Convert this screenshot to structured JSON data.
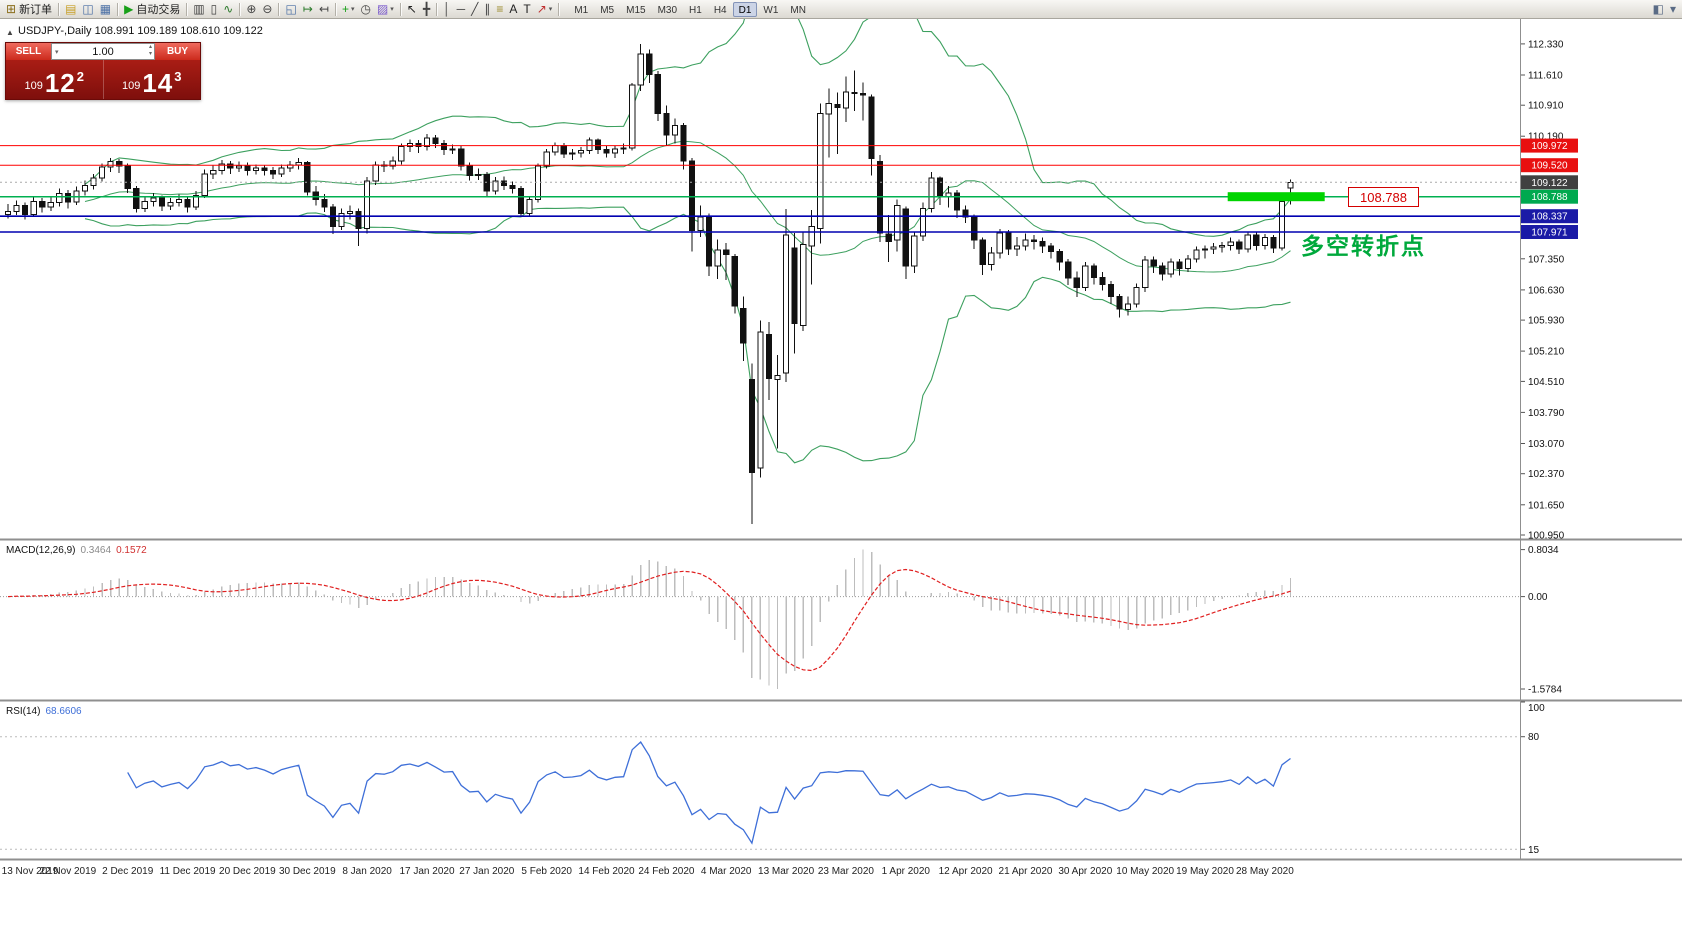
{
  "toolbar": {
    "items": [
      {
        "name": "new-order-button",
        "glyph": "⊞",
        "color": "#8a6d1a",
        "label": "新订单"
      },
      {
        "sep": true
      },
      {
        "name": "profiles-icon",
        "glyph": "▤",
        "color": "#c8a028"
      },
      {
        "name": "market-watch-icon",
        "glyph": "◫",
        "color": "#4a6fa5"
      },
      {
        "name": "data-window-icon",
        "glyph": "▦",
        "color": "#4a6fa5"
      },
      {
        "sep": true
      },
      {
        "name": "auto-trading-button",
        "glyph": "▶",
        "color": "#18a018",
        "label": "自动交易"
      },
      {
        "sep": true
      },
      {
        "name": "bar-chart-icon",
        "glyph": "▥",
        "color": "#444444"
      },
      {
        "name": "candlestick-chart-icon",
        "glyph": "▯",
        "color": "#444444"
      },
      {
        "name": "line-chart-icon",
        "glyph": "∿",
        "color": "#2a7a2a"
      },
      {
        "sep": true
      },
      {
        "name": "zoom-in-icon",
        "glyph": "⊕",
        "color": "#444444"
      },
      {
        "name": "zoom-out-icon",
        "glyph": "⊖",
        "color": "#444444"
      },
      {
        "sep": true
      },
      {
        "name": "tile-windows-icon",
        "glyph": "◱",
        "color": "#4a6fa5"
      },
      {
        "name": "auto-scroll-icon",
        "glyph": "↦",
        "color": "#2a7a2a"
      },
      {
        "name": "chart-shift-icon",
        "glyph": "↤",
        "color": "#444444"
      },
      {
        "sep": true
      },
      {
        "name": "new-chart-icon",
        "glyph": "+",
        "color": "#18a018",
        "caret": true
      },
      {
        "name": "cycles-icon",
        "glyph": "◷",
        "color": "#444444"
      },
      {
        "name": "templates-icon",
        "glyph": "▨",
        "color": "#7a5acd",
        "caret": true
      },
      {
        "sep": true
      },
      {
        "name": "cursor-icon",
        "glyph": "↖",
        "color": "#222222"
      },
      {
        "name": "crosshair-icon",
        "glyph": "╋",
        "color": "#444444"
      },
      {
        "sep": true
      },
      {
        "name": "vertical-line-icon",
        "glyph": "│",
        "color": "#444444"
      },
      {
        "name": "horizontal-line-icon",
        "glyph": "─",
        "color": "#444444"
      },
      {
        "name": "trendline-icon",
        "glyph": "╱",
        "color": "#444444"
      },
      {
        "name": "channel-icon",
        "glyph": "∥",
        "color": "#444444"
      },
      {
        "name": "fibonacci-icon",
        "glyph": "≡",
        "color": "#9a8a2a"
      },
      {
        "name": "text-icon",
        "glyph": "A",
        "color": "#222222"
      },
      {
        "name": "label-icon",
        "glyph": "T",
        "color": "#222222"
      },
      {
        "name": "arrow-tools-icon",
        "glyph": "↗",
        "color": "#c03030",
        "caret": true
      },
      {
        "sep": true
      }
    ],
    "timeframes": {
      "items": [
        "M1",
        "M5",
        "M15",
        "M30",
        "H1",
        "H4",
        "D1",
        "W1",
        "MN"
      ],
      "active": "D1"
    },
    "right_icons": [
      {
        "name": "chart-list-icon",
        "glyph": "◧",
        "color": "#5a6b85"
      },
      {
        "name": "toolbars-menu-icon",
        "glyph": "▾",
        "color": "#5a6b85"
      }
    ]
  },
  "one_click": {
    "sell_label": "SELL",
    "buy_label": "BUY",
    "volume": "1.00",
    "bid": {
      "prefix": "109",
      "big": "12",
      "sup": "2"
    },
    "ask": {
      "prefix": "109",
      "big": "14",
      "sup": "3"
    }
  },
  "chart_data": {
    "type": "candlestick",
    "symbol": "USDJPY-",
    "period": "Daily",
    "title": "USDJPY-,Daily 108.991 109.189 108.610 109.122",
    "ohlc": {
      "open": "108.991",
      "high": "109.189",
      "low": "108.610",
      "close": "109.122"
    },
    "current_price": 109.122,
    "candles": [
      [
        108.38,
        108.62,
        108.28,
        108.45
      ],
      [
        108.45,
        108.7,
        108.36,
        108.58
      ],
      [
        108.58,
        108.66,
        108.26,
        108.38
      ],
      [
        108.38,
        108.78,
        108.33,
        108.68
      ],
      [
        108.68,
        108.76,
        108.42,
        108.55
      ],
      [
        108.55,
        108.79,
        108.46,
        108.65
      ],
      [
        108.65,
        108.98,
        108.56,
        108.86
      ],
      [
        108.86,
        108.94,
        108.52,
        108.66
      ],
      [
        108.66,
        109.02,
        108.6,
        108.92
      ],
      [
        108.92,
        109.16,
        108.82,
        109.05
      ],
      [
        109.05,
        109.32,
        108.96,
        109.22
      ],
      [
        109.22,
        109.56,
        109.14,
        109.48
      ],
      [
        109.48,
        109.68,
        109.36,
        109.6
      ],
      [
        109.6,
        109.66,
        109.34,
        109.5
      ],
      [
        109.5,
        109.56,
        108.88,
        108.98
      ],
      [
        108.98,
        109.04,
        108.42,
        108.52
      ],
      [
        108.52,
        108.78,
        108.44,
        108.68
      ],
      [
        108.68,
        108.88,
        108.56,
        108.76
      ],
      [
        108.76,
        108.82,
        108.46,
        108.58
      ],
      [
        108.58,
        108.76,
        108.48,
        108.66
      ],
      [
        108.66,
        108.84,
        108.56,
        108.72
      ],
      [
        108.72,
        108.78,
        108.42,
        108.55
      ],
      [
        108.55,
        108.92,
        108.48,
        108.82
      ],
      [
        108.82,
        109.42,
        108.76,
        109.32
      ],
      [
        109.32,
        109.52,
        109.2,
        109.4
      ],
      [
        109.4,
        109.64,
        109.3,
        109.55
      ],
      [
        109.55,
        109.62,
        109.32,
        109.45
      ],
      [
        109.45,
        109.6,
        109.36,
        109.5
      ],
      [
        109.5,
        109.58,
        109.28,
        109.4
      ],
      [
        109.4,
        109.54,
        109.3,
        109.45
      ],
      [
        109.45,
        109.52,
        109.28,
        109.4
      ],
      [
        109.4,
        109.48,
        109.2,
        109.32
      ],
      [
        109.32,
        109.54,
        109.24,
        109.45
      ],
      [
        109.45,
        109.62,
        109.36,
        109.52
      ],
      [
        109.52,
        109.68,
        109.42,
        109.58
      ],
      [
        109.58,
        109.62,
        108.82,
        108.9
      ],
      [
        108.9,
        109.04,
        108.58,
        108.72
      ],
      [
        108.72,
        108.85,
        108.44,
        108.55
      ],
      [
        108.55,
        108.62,
        107.92,
        108.1
      ],
      [
        108.1,
        108.52,
        108.02,
        108.4
      ],
      [
        108.4,
        108.58,
        108.26,
        108.45
      ],
      [
        108.45,
        108.52,
        107.65,
        108.05
      ],
      [
        108.05,
        109.24,
        107.94,
        109.15
      ],
      [
        109.15,
        109.6,
        109.06,
        109.52
      ],
      [
        109.52,
        109.62,
        109.36,
        109.5
      ],
      [
        109.5,
        109.72,
        109.42,
        109.62
      ],
      [
        109.62,
        110.02,
        109.54,
        109.95
      ],
      [
        109.95,
        110.12,
        109.82,
        110.02
      ],
      [
        110.02,
        110.1,
        109.8,
        109.95
      ],
      [
        109.95,
        110.24,
        109.86,
        110.15
      ],
      [
        110.15,
        110.22,
        109.92,
        110.02
      ],
      [
        110.02,
        110.1,
        109.76,
        109.88
      ],
      [
        109.88,
        110.0,
        109.78,
        109.9
      ],
      [
        109.9,
        109.96,
        109.4,
        109.5
      ],
      [
        109.5,
        109.58,
        109.16,
        109.28
      ],
      [
        109.28,
        109.44,
        109.18,
        109.3
      ],
      [
        109.3,
        109.36,
        108.8,
        108.92
      ],
      [
        108.92,
        109.24,
        108.84,
        109.15
      ],
      [
        109.15,
        109.26,
        108.94,
        109.05
      ],
      [
        109.05,
        109.14,
        108.86,
        108.98
      ],
      [
        108.98,
        109.04,
        108.32,
        108.4
      ],
      [
        108.4,
        108.8,
        108.32,
        108.72
      ],
      [
        108.72,
        109.56,
        108.66,
        109.5
      ],
      [
        109.5,
        109.9,
        109.44,
        109.82
      ],
      [
        109.82,
        110.05,
        109.74,
        109.98
      ],
      [
        109.98,
        110.03,
        109.68,
        109.78
      ],
      [
        109.78,
        109.9,
        109.64,
        109.8
      ],
      [
        109.8,
        109.94,
        109.7,
        109.86
      ],
      [
        109.86,
        110.16,
        109.78,
        110.1
      ],
      [
        110.1,
        110.14,
        109.78,
        109.88
      ],
      [
        109.88,
        109.96,
        109.7,
        109.8
      ],
      [
        109.8,
        109.98,
        109.68,
        109.9
      ],
      [
        109.9,
        110.02,
        109.78,
        109.92
      ],
      [
        109.92,
        111.42,
        109.86,
        111.38
      ],
      [
        111.38,
        112.33,
        111.24,
        112.1
      ],
      [
        112.1,
        112.2,
        111.42,
        111.62
      ],
      [
        111.62,
        111.7,
        110.54,
        110.72
      ],
      [
        110.72,
        110.9,
        109.98,
        110.22
      ],
      [
        110.22,
        110.6,
        110.02,
        110.44
      ],
      [
        110.44,
        110.5,
        109.42,
        109.62
      ],
      [
        109.62,
        109.68,
        107.52,
        108.0
      ],
      [
        108.0,
        108.58,
        107.86,
        108.32
      ],
      [
        108.32,
        108.4,
        106.95,
        107.18
      ],
      [
        107.18,
        107.8,
        106.88,
        107.55
      ],
      [
        107.55,
        107.72,
        106.86,
        107.45
      ],
      [
        107.4,
        107.46,
        106.08,
        106.25
      ],
      [
        106.2,
        106.48,
        104.98,
        105.4
      ],
      [
        104.55,
        104.92,
        101.2,
        102.4
      ],
      [
        102.5,
        105.92,
        102.28,
        105.65
      ],
      [
        105.6,
        105.88,
        104.08,
        104.58
      ],
      [
        104.55,
        105.12,
        102.95,
        104.65
      ],
      [
        104.7,
        108.5,
        104.5,
        107.9
      ],
      [
        107.6,
        107.95,
        105.15,
        105.85
      ],
      [
        105.8,
        107.96,
        105.68,
        107.68
      ],
      [
        107.65,
        108.48,
        106.75,
        108.1
      ],
      [
        108.05,
        110.95,
        107.7,
        110.72
      ],
      [
        110.7,
        111.3,
        109.7,
        110.95
      ],
      [
        110.92,
        111.2,
        109.78,
        110.85
      ],
      [
        110.85,
        111.58,
        110.52,
        111.22
      ],
      [
        111.2,
        111.71,
        110.78,
        111.2
      ],
      [
        111.18,
        111.44,
        110.56,
        111.15
      ],
      [
        111.1,
        111.16,
        109.28,
        109.68
      ],
      [
        109.6,
        109.75,
        107.74,
        107.95
      ],
      [
        107.92,
        108.36,
        107.28,
        107.75
      ],
      [
        107.78,
        108.72,
        107.52,
        108.58
      ],
      [
        108.5,
        108.56,
        106.88,
        107.18
      ],
      [
        107.18,
        107.96,
        107.02,
        107.88
      ],
      [
        107.88,
        108.66,
        107.76,
        108.52
      ],
      [
        108.52,
        109.36,
        108.42,
        109.22
      ],
      [
        109.22,
        109.26,
        108.6,
        108.78
      ],
      [
        108.78,
        109.04,
        108.54,
        108.88
      ],
      [
        108.88,
        108.94,
        108.3,
        108.48
      ],
      [
        108.48,
        108.58,
        108.18,
        108.32
      ],
      [
        108.32,
        108.38,
        107.58,
        107.78
      ],
      [
        107.78,
        107.84,
        106.98,
        107.22
      ],
      [
        107.22,
        107.62,
        107.08,
        107.48
      ],
      [
        107.48,
        108.04,
        107.36,
        107.95
      ],
      [
        107.95,
        108.02,
        107.44,
        107.58
      ],
      [
        107.58,
        107.86,
        107.42,
        107.65
      ],
      [
        107.65,
        107.94,
        107.54,
        107.78
      ],
      [
        107.78,
        107.9,
        107.56,
        107.75
      ],
      [
        107.75,
        107.84,
        107.48,
        107.65
      ],
      [
        107.65,
        107.72,
        107.36,
        107.52
      ],
      [
        107.52,
        107.58,
        107.08,
        107.28
      ],
      [
        107.28,
        107.34,
        106.74,
        106.9
      ],
      [
        106.9,
        107.06,
        106.46,
        106.68
      ],
      [
        106.68,
        107.28,
        106.6,
        107.18
      ],
      [
        107.18,
        107.24,
        106.76,
        106.92
      ],
      [
        106.92,
        107.04,
        106.62,
        106.76
      ],
      [
        106.76,
        106.84,
        106.3,
        106.48
      ],
      [
        106.48,
        106.54,
        105.99,
        106.18
      ],
      [
        106.18,
        106.48,
        106.04,
        106.3
      ],
      [
        106.3,
        106.78,
        106.22,
        106.68
      ],
      [
        106.68,
        107.42,
        106.58,
        107.32
      ],
      [
        107.32,
        107.4,
        107.02,
        107.18
      ],
      [
        107.18,
        107.26,
        106.85,
        107.0
      ],
      [
        107.0,
        107.36,
        106.92,
        107.28
      ],
      [
        107.28,
        107.34,
        106.96,
        107.12
      ],
      [
        107.12,
        107.44,
        107.04,
        107.35
      ],
      [
        107.35,
        107.64,
        107.26,
        107.55
      ],
      [
        107.55,
        107.66,
        107.36,
        107.58
      ],
      [
        107.58,
        107.72,
        107.46,
        107.62
      ],
      [
        107.62,
        107.74,
        107.5,
        107.66
      ],
      [
        107.66,
        107.84,
        107.54,
        107.74
      ],
      [
        107.74,
        107.8,
        107.46,
        107.58
      ],
      [
        107.58,
        107.98,
        107.5,
        107.9
      ],
      [
        107.9,
        107.96,
        107.54,
        107.66
      ],
      [
        107.66,
        107.92,
        107.56,
        107.84
      ],
      [
        107.84,
        107.9,
        107.48,
        107.6
      ],
      [
        107.6,
        108.76,
        107.54,
        108.68
      ],
      [
        108.99,
        109.19,
        108.61,
        109.12
      ]
    ],
    "x_labels": [
      {
        "text": "13 Nov 2019",
        "bar": 0
      },
      {
        "text": "22 Nov 2019",
        "bar": 7
      },
      {
        "text": "2 Dec 2019",
        "bar": 14
      },
      {
        "text": "11 Dec 2019",
        "bar": 21
      },
      {
        "text": "20 Dec 2019",
        "bar": 28
      },
      {
        "text": "30 Dec 2019",
        "bar": 35
      },
      {
        "text": "8 Jan 2020",
        "bar": 42
      },
      {
        "text": "17 Jan 2020",
        "bar": 49
      },
      {
        "text": "27 Jan 2020",
        "bar": 56
      },
      {
        "text": "5 Feb 2020",
        "bar": 63
      },
      {
        "text": "14 Feb 2020",
        "bar": 70
      },
      {
        "text": "24 Feb 2020",
        "bar": 77
      },
      {
        "text": "4 Mar 2020",
        "bar": 84
      },
      {
        "text": "13 Mar 2020",
        "bar": 91
      },
      {
        "text": "23 Mar 2020",
        "bar": 98
      },
      {
        "text": "1 Apr 2020",
        "bar": 105
      },
      {
        "text": "12 Apr 2020",
        "bar": 112
      },
      {
        "text": "21 Apr 2020",
        "bar": 119
      },
      {
        "text": "30 Apr 2020",
        "bar": 126
      },
      {
        "text": "10 May 2020",
        "bar": 133
      },
      {
        "text": "19 May 2020",
        "bar": 140
      },
      {
        "text": "28 May 2020",
        "bar": 147
      }
    ],
    "y_axis": {
      "ticks": [
        "112.330",
        "111.610",
        "110.910",
        "110.190",
        "107.350",
        "106.630",
        "105.930",
        "105.210",
        "104.510",
        "103.790",
        "103.070",
        "102.370",
        "101.650",
        "100.950"
      ],
      "badges": [
        {
          "text": "109.972",
          "price": 109.972,
          "color": "#e81010"
        },
        {
          "text": "109.520",
          "price": 109.52,
          "color": "#e81010"
        },
        {
          "text": "109.122",
          "price": 109.122,
          "color": "#404040"
        },
        {
          "text": "108.788",
          "price": 108.788,
          "color": "#00a94f"
        },
        {
          "text": "108.337",
          "price": 108.337,
          "color": "#1a1aa6"
        },
        {
          "text": "107.971",
          "price": 107.971,
          "color": "#1a1aa6"
        }
      ]
    },
    "levels": [
      {
        "price": 109.972,
        "color": "#ff0000",
        "width": 1
      },
      {
        "price": 109.52,
        "color": "#ff0000",
        "width": 1
      },
      {
        "price": 108.788,
        "color": "#00b050",
        "width": 1.5
      },
      {
        "price": 108.337,
        "color": "#0000b0",
        "width": 1.6
      },
      {
        "price": 107.971,
        "color": "#0000b0",
        "width": 1.6
      }
    ],
    "bollinger": {
      "period": 20,
      "deviation": 2,
      "color": "#3da05f"
    },
    "highlight_bar": {
      "price": 108.788,
      "color": "#00d400"
    },
    "annotations": {
      "price_box": "108.788",
      "note": "多空转折点"
    },
    "macd": {
      "label": "MACD(12,26,9)",
      "values_text": [
        "0.3464",
        "0.1572"
      ],
      "params": [
        12,
        26,
        9
      ],
      "axis_labels": [
        "0.8034",
        "0.00",
        "-1.5784"
      ],
      "axis_values": [
        0.8034,
        0,
        -1.5784
      ],
      "hist_color": "#bdbdbd",
      "signal_color": "#e02020"
    },
    "rsi": {
      "label": "RSI(14)",
      "value_text": "68.6606",
      "period": 14,
      "levels": [
        80,
        15
      ],
      "axis_labels": [
        "100",
        "80",
        "15"
      ],
      "axis_values": [
        100,
        80,
        15
      ],
      "color": "#3e6fd8"
    }
  }
}
